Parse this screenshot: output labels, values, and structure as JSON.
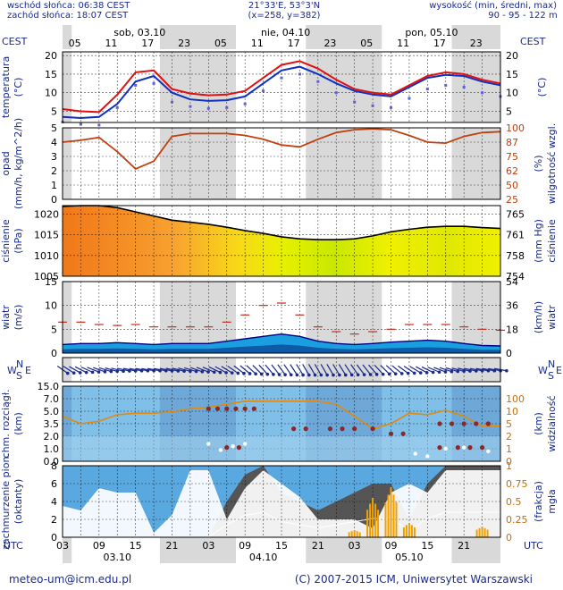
{
  "header": {
    "sunrise": "wschód słońca: 06:38 CEST",
    "sunset": "zachód słońca: 18:07 CEST",
    "coords": "21°33'E, 53°3'N",
    "grid": "(x=258, y=382)",
    "height_label": "wysokość (min, średni, max)",
    "height_values": "90 - 95 - 122 m"
  },
  "timezone_top": "CEST",
  "timezone_bottom": "UTC",
  "days_top": [
    "sob, 03.10",
    "nie, 04.10",
    "pon, 05.10"
  ],
  "hours_top": [
    "05",
    "11",
    "17",
    "23",
    "05",
    "11",
    "17",
    "23",
    "05",
    "11",
    "17",
    "23"
  ],
  "hours_bottom": [
    "03",
    "09",
    "15",
    "21",
    "03",
    "09",
    "15",
    "21",
    "03",
    "09",
    "15",
    "21"
  ],
  "days_bottom": [
    "03.10",
    "04.10",
    "05.10"
  ],
  "footer": {
    "email": "meteo-um@icm.edu.pl",
    "copyright": "(C) 2007-2015 ICM, Uniwersytet Warszawski"
  },
  "colors": {
    "text": "#1a2a8a",
    "night_band": "#d9d9d9",
    "temp_line": "#e01010",
    "dew_line": "#1030c0",
    "humidity_line": "#c04010",
    "pressure_line": "#000000",
    "wind_fill": "#1a9ee0",
    "visibility_bg": "#7fbfe8",
    "cloud_fill": "#555555"
  },
  "chart_data": [
    {
      "type": "line",
      "name": "temperature",
      "ylabel_left": "temperatura (°C)",
      "ylabel_right": "(°C)",
      "yticks": [
        5,
        10,
        15,
        20
      ],
      "ylim": [
        2,
        21
      ],
      "x_hours": [
        0,
        3,
        6,
        9,
        12,
        15,
        18,
        21,
        24,
        27,
        30,
        33,
        36,
        39,
        42,
        45,
        48,
        51,
        54,
        57,
        60,
        63,
        66,
        69,
        72
      ],
      "temperature": [
        5.6,
        5.0,
        4.8,
        9.5,
        15.5,
        16.0,
        11.0,
        9.8,
        9.3,
        9.5,
        10.5,
        14.0,
        17.5,
        18.5,
        16.5,
        13.5,
        11.0,
        10.0,
        9.5,
        12.0,
        14.5,
        15.5,
        15.0,
        13.5,
        12.5
      ],
      "dew_point": [
        3.5,
        3.2,
        3.5,
        7.0,
        13.0,
        14.5,
        10.0,
        8.2,
        7.8,
        8.0,
        9.0,
        12.5,
        16.0,
        17.0,
        15.0,
        12.5,
        10.5,
        9.5,
        9.0,
        11.5,
        14.0,
        14.8,
        14.5,
        13.0,
        12.0
      ]
    },
    {
      "type": "line",
      "name": "precipitation_humidity",
      "ylabel_left": "opad (mm/h, kg/m^2/h)",
      "ylabel_right": "wilgotność wzgl. (%)",
      "yticks_left": [
        0,
        1,
        2,
        3,
        4,
        5
      ],
      "yticks_right": [
        25,
        50,
        62,
        75,
        87,
        100
      ],
      "ylim": [
        0,
        5
      ],
      "x_hours": [
        0,
        3,
        6,
        9,
        12,
        15,
        18,
        21,
        24,
        27,
        30,
        33,
        36,
        39,
        42,
        45,
        48,
        51,
        54,
        57,
        60,
        63,
        66,
        69,
        72
      ],
      "humidity": [
        85,
        87,
        90,
        75,
        57,
        65,
        91,
        94,
        94,
        94,
        92,
        88,
        82,
        80,
        88,
        95,
        98,
        99,
        98,
        92,
        85,
        84,
        91,
        95,
        96
      ],
      "precipitation": []
    },
    {
      "type": "area",
      "name": "pressure",
      "ylabel_left": "ciśnienie (hPa)",
      "ylabel_right": "ciśnienie (mm Hg)",
      "yticks_left": [
        1005,
        1010,
        1015,
        1020
      ],
      "yticks_right": [
        754,
        758,
        761,
        765
      ],
      "ylim": [
        1005,
        1022
      ],
      "x_hours": [
        0,
        3,
        6,
        9,
        12,
        15,
        18,
        21,
        24,
        27,
        30,
        33,
        36,
        39,
        42,
        45,
        48,
        51,
        54,
        57,
        60,
        63,
        66,
        69,
        72
      ],
      "pressure": [
        1021.8,
        1022.0,
        1022.0,
        1021.5,
        1020.5,
        1019.5,
        1018.5,
        1018.0,
        1017.5,
        1016.8,
        1016.0,
        1015.3,
        1014.5,
        1014.0,
        1013.8,
        1013.8,
        1014.0,
        1014.7,
        1015.7,
        1016.3,
        1016.8,
        1017.0,
        1017.0,
        1016.7,
        1016.5
      ]
    },
    {
      "type": "area",
      "name": "wind",
      "ylabel_left": "wiatr (m/s)",
      "ylabel_right": "wiatr (km/h)",
      "yticks_left": [
        0,
        5,
        10,
        15
      ],
      "yticks_right": [
        0,
        18,
        36,
        54
      ],
      "ylim": [
        0,
        15
      ],
      "x_hours": [
        0,
        3,
        6,
        9,
        12,
        15,
        18,
        21,
        24,
        27,
        30,
        33,
        36,
        39,
        42,
        45,
        48,
        51,
        54,
        57,
        60,
        63,
        66,
        69,
        72
      ],
      "wind_speed": [
        1.8,
        2.0,
        2.0,
        2.2,
        2.0,
        1.8,
        2.0,
        2.0,
        2.0,
        2.5,
        3.0,
        3.5,
        4.0,
        3.5,
        2.5,
        2.0,
        1.8,
        2.0,
        2.3,
        2.5,
        2.7,
        2.5,
        2.0,
        1.6,
        1.5
      ],
      "wind_gust": [
        6.5,
        6.5,
        6.0,
        5.8,
        6.0,
        5.5,
        5.5,
        5.5,
        5.5,
        6.5,
        8.0,
        10.0,
        10.5,
        8.0,
        5.5,
        4.5,
        4.0,
        4.5,
        5.0,
        6.0,
        6.0,
        6.0,
        5.5,
        5.0,
        4.8
      ]
    },
    {
      "type": "scatter",
      "name": "cloud_base_visibility",
      "ylabel_left": "chm. rozciągł. (km)",
      "ylabel_right": "widzialność (km)",
      "yticks_left": [
        0,
        1,
        2,
        3.5,
        5,
        7,
        15
      ],
      "yticks_right": [
        0,
        1,
        2,
        5,
        10,
        100
      ],
      "ytick_labels_left": [
        "0.0",
        "1.0",
        "2.0",
        "3.5",
        "5.0",
        "7.0",
        "15.0"
      ],
      "ytick_labels_right": [
        "0",
        "1",
        "2",
        "5",
        "10",
        "100"
      ],
      "x_hours": [
        0,
        3,
        6,
        9,
        12,
        15,
        18,
        21,
        24,
        27,
        30,
        33,
        36,
        39,
        42,
        45,
        48,
        51,
        54,
        57,
        60,
        63,
        66,
        69,
        72
      ],
      "visibility": [
        5,
        3.5,
        4,
        5.5,
        6,
        6,
        6.5,
        7.5,
        8,
        9,
        10,
        10,
        10,
        10,
        10,
        9,
        5,
        2.5,
        3.5,
        6,
        5.5,
        7,
        5,
        3,
        3
      ]
    },
    {
      "type": "area",
      "name": "cloudiness_fog",
      "ylabel_left": "zachmurzenie pion. (oktanty)",
      "ylabel_right": "mgła (frakcja)",
      "yticks_left": [
        0,
        2,
        4,
        6,
        8
      ],
      "yticks_right": [
        0,
        0.25,
        0.5,
        0.75,
        1
      ],
      "ytick_labels_right": [
        "0",
        "0.25",
        "0.5",
        "0.75",
        "1"
      ],
      "ylim": [
        0,
        8
      ],
      "x_hours": [
        0,
        3,
        6,
        9,
        12,
        15,
        18,
        21,
        24,
        27,
        30,
        33,
        36,
        39,
        42,
        45,
        48,
        51,
        54,
        57,
        60,
        63,
        66,
        69,
        72
      ],
      "cloud_low": [
        3.5,
        3,
        5.5,
        5,
        5,
        0.5,
        2.5,
        7.5,
        7.5,
        2,
        5.5,
        7.5,
        6,
        4.5,
        2,
        2,
        2,
        1,
        5,
        6,
        5,
        7.5,
        7.5,
        7.5,
        7.5
      ],
      "cloud_high": [
        0,
        0,
        0,
        0,
        0,
        0,
        0,
        0,
        0,
        4,
        7,
        8,
        5,
        4,
        3,
        4,
        5,
        6,
        6,
        2,
        6,
        8,
        8,
        8,
        8
      ],
      "fog": [
        0,
        0,
        0,
        0,
        0,
        0,
        0,
        0,
        0,
        0,
        0,
        0,
        0,
        0,
        0,
        0,
        0.1,
        0.55,
        0.7,
        0.2,
        0,
        0,
        0,
        0.15,
        0
      ]
    }
  ]
}
